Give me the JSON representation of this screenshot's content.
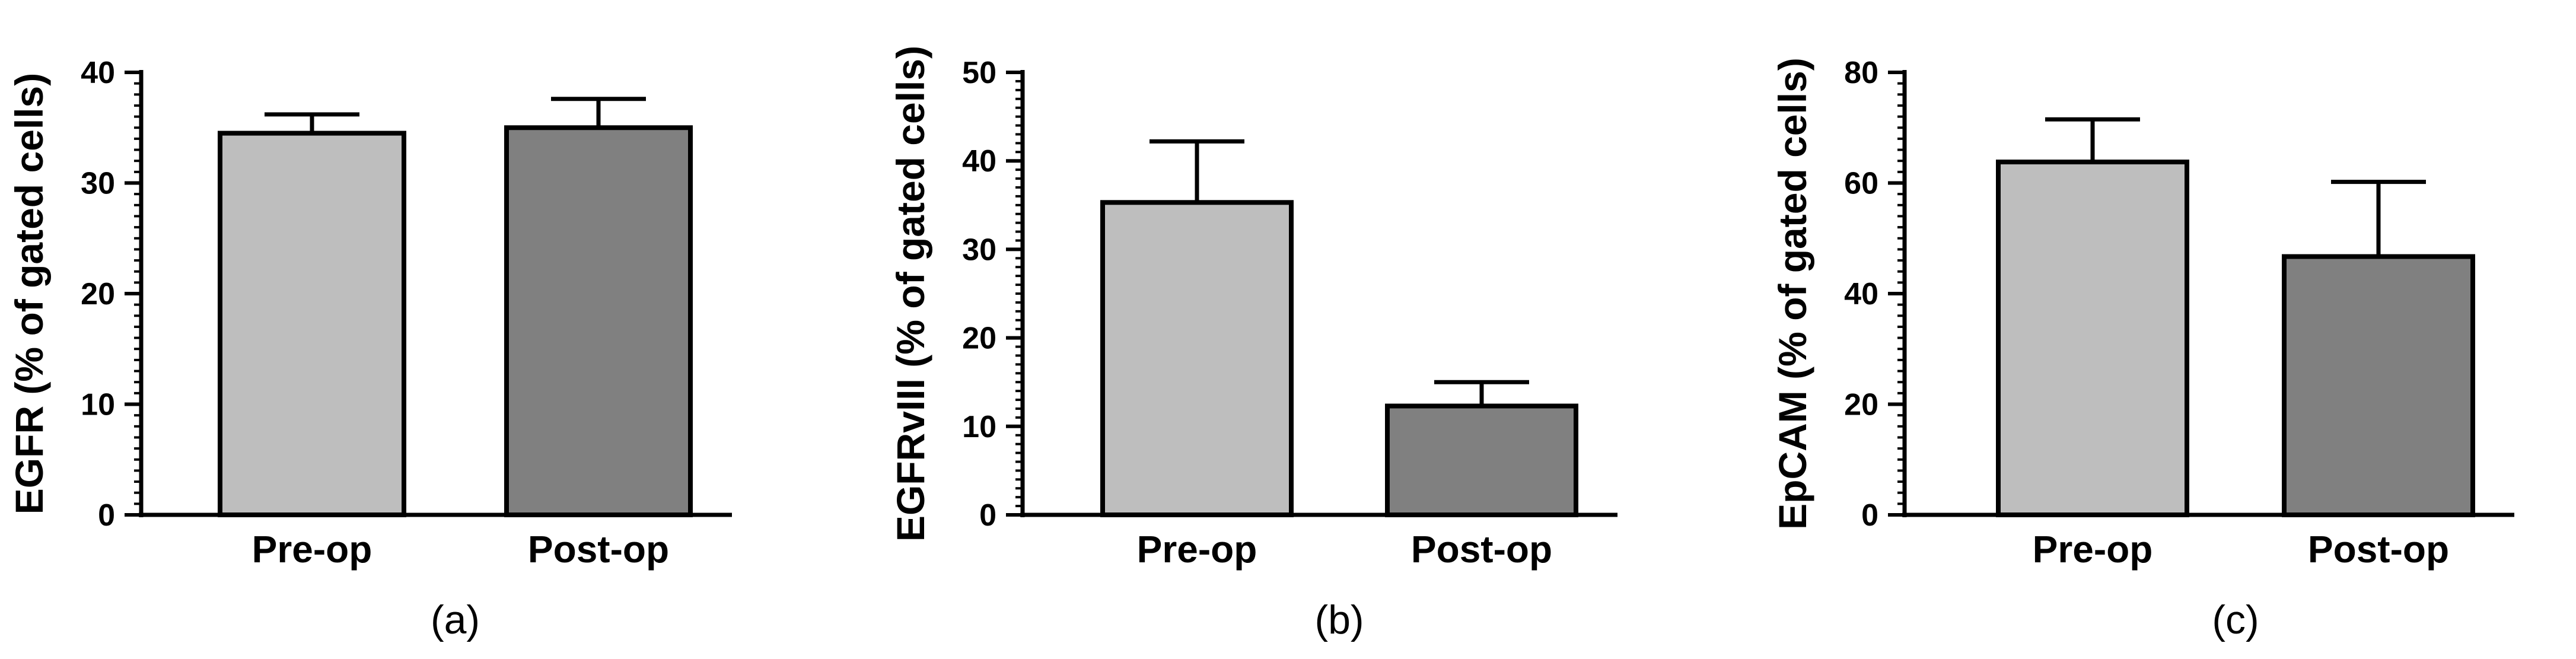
{
  "chart_data": [
    {
      "type": "bar",
      "panel_label": "(a)",
      "categories": [
        "Pre-op",
        "Post-op"
      ],
      "values": [
        34.5,
        35.0
      ],
      "error_upper": [
        36.2,
        37.6
      ],
      "ylabel": "EGFR (% of gated cells)",
      "ylim": [
        0,
        40
      ],
      "yticks": [
        0,
        10,
        20,
        30,
        40
      ],
      "ytick_labels": [
        "0",
        "10",
        "20",
        "30",
        "40"
      ],
      "bar_colors": [
        "#bebebe",
        "#808080"
      ]
    },
    {
      "type": "bar",
      "panel_label": "(b)",
      "categories": [
        "Pre-op",
        "Post-op"
      ],
      "values": [
        35.3,
        12.3
      ],
      "error_upper": [
        42.2,
        15.0
      ],
      "ylabel": "EGFRvIII (% of gated cells)",
      "ylim": [
        0,
        50
      ],
      "yticks": [
        0,
        10,
        20,
        30,
        40,
        50
      ],
      "ytick_labels": [
        "0",
        "10",
        "20",
        "30",
        "40",
        "50"
      ],
      "bar_colors": [
        "#bebebe",
        "#808080"
      ]
    },
    {
      "type": "bar",
      "panel_label": "(c)",
      "categories": [
        "Pre-op",
        "Post-op"
      ],
      "values": [
        63.8,
        46.7
      ],
      "error_upper": [
        71.5,
        60.2
      ],
      "ylabel": "EpCAM (% of gated cells)",
      "ylim": [
        0,
        80
      ],
      "yticks": [
        0,
        20,
        40,
        60,
        80
      ],
      "ytick_labels": [
        "0",
        "20",
        "40",
        "60",
        "80"
      ],
      "bar_colors": [
        "#bebebe",
        "#808080"
      ]
    }
  ]
}
